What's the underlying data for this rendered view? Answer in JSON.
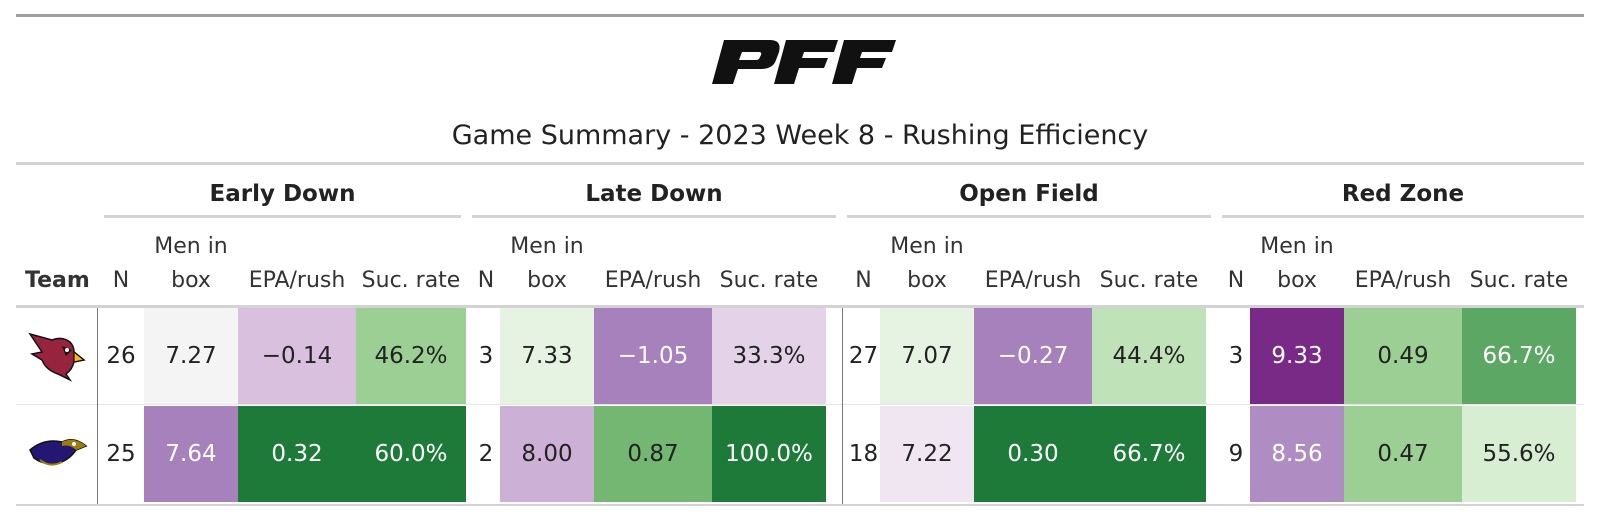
{
  "header": {
    "logo_text": "PFF",
    "subtitle": "Game Summary - 2023 Week 8 - Rushing Efficiency"
  },
  "groups": [
    "Early Down",
    "Late Down",
    "Open Field",
    "Red Zone"
  ],
  "columns": {
    "team": "Team",
    "n": "N",
    "men_line1": "Men in",
    "men_line2": "box",
    "epa": "EPA/rush",
    "suc": "Suc. rate"
  },
  "rows": [
    {
      "team_icon": "cardinals-logo-icon",
      "cells": [
        {
          "text": "26",
          "bg": "#ffffff",
          "fg": "#222222"
        },
        {
          "text": "7.27",
          "bg": "#f4f4f4",
          "fg": "#222222"
        },
        {
          "text": "−0.14",
          "bg": "#dac0df",
          "fg": "#222222"
        },
        {
          "text": "46.2%",
          "bg": "#9bcf93",
          "fg": "#222222"
        },
        {
          "text": "3",
          "bg": "#ffffff",
          "fg": "#222222"
        },
        {
          "text": "7.33",
          "bg": "#e6f2e2",
          "fg": "#222222"
        },
        {
          "text": "−1.05",
          "bg": "#a781bb",
          "fg": "#ffffff"
        },
        {
          "text": "33.3%",
          "bg": "#e4d3e8",
          "fg": "#222222"
        },
        {
          "text": "27",
          "bg": "#ffffff",
          "fg": "#222222"
        },
        {
          "text": "7.07",
          "bg": "#e6f2e2",
          "fg": "#222222"
        },
        {
          "text": "−0.27",
          "bg": "#a781bb",
          "fg": "#ffffff"
        },
        {
          "text": "44.4%",
          "bg": "#c0e2b8",
          "fg": "#222222"
        },
        {
          "text": "3",
          "bg": "#ffffff",
          "fg": "#222222"
        },
        {
          "text": "9.33",
          "bg": "#782a86",
          "fg": "#ffffff"
        },
        {
          "text": "0.49",
          "bg": "#9bcf93",
          "fg": "#222222"
        },
        {
          "text": "66.7%",
          "bg": "#5ba763",
          "fg": "#ffffff"
        }
      ]
    },
    {
      "team_icon": "ravens-logo-icon",
      "cells": [
        {
          "text": "25",
          "bg": "#ffffff",
          "fg": "#222222"
        },
        {
          "text": "7.64",
          "bg": "#a781bb",
          "fg": "#ffffff"
        },
        {
          "text": "0.32",
          "bg": "#1d7a38",
          "fg": "#ffffff"
        },
        {
          "text": "60.0%",
          "bg": "#1d7a38",
          "fg": "#ffffff"
        },
        {
          "text": "2",
          "bg": "#ffffff",
          "fg": "#222222"
        },
        {
          "text": "8.00",
          "bg": "#ccb0d6",
          "fg": "#222222"
        },
        {
          "text": "0.87",
          "bg": "#74b772",
          "fg": "#222222"
        },
        {
          "text": "100.0%",
          "bg": "#1d7a38",
          "fg": "#ffffff"
        },
        {
          "text": "18",
          "bg": "#ffffff",
          "fg": "#222222"
        },
        {
          "text": "7.22",
          "bg": "#efe6f1",
          "fg": "#222222"
        },
        {
          "text": "0.30",
          "bg": "#1d7a38",
          "fg": "#ffffff"
        },
        {
          "text": "66.7%",
          "bg": "#1d7a38",
          "fg": "#ffffff"
        },
        {
          "text": "9",
          "bg": "#ffffff",
          "fg": "#222222"
        },
        {
          "text": "8.56",
          "bg": "#af8dc2",
          "fg": "#ffffff"
        },
        {
          "text": "0.47",
          "bg": "#9bcf93",
          "fg": "#222222"
        },
        {
          "text": "55.6%",
          "bg": "#d7eed2",
          "fg": "#222222"
        }
      ]
    }
  ]
}
